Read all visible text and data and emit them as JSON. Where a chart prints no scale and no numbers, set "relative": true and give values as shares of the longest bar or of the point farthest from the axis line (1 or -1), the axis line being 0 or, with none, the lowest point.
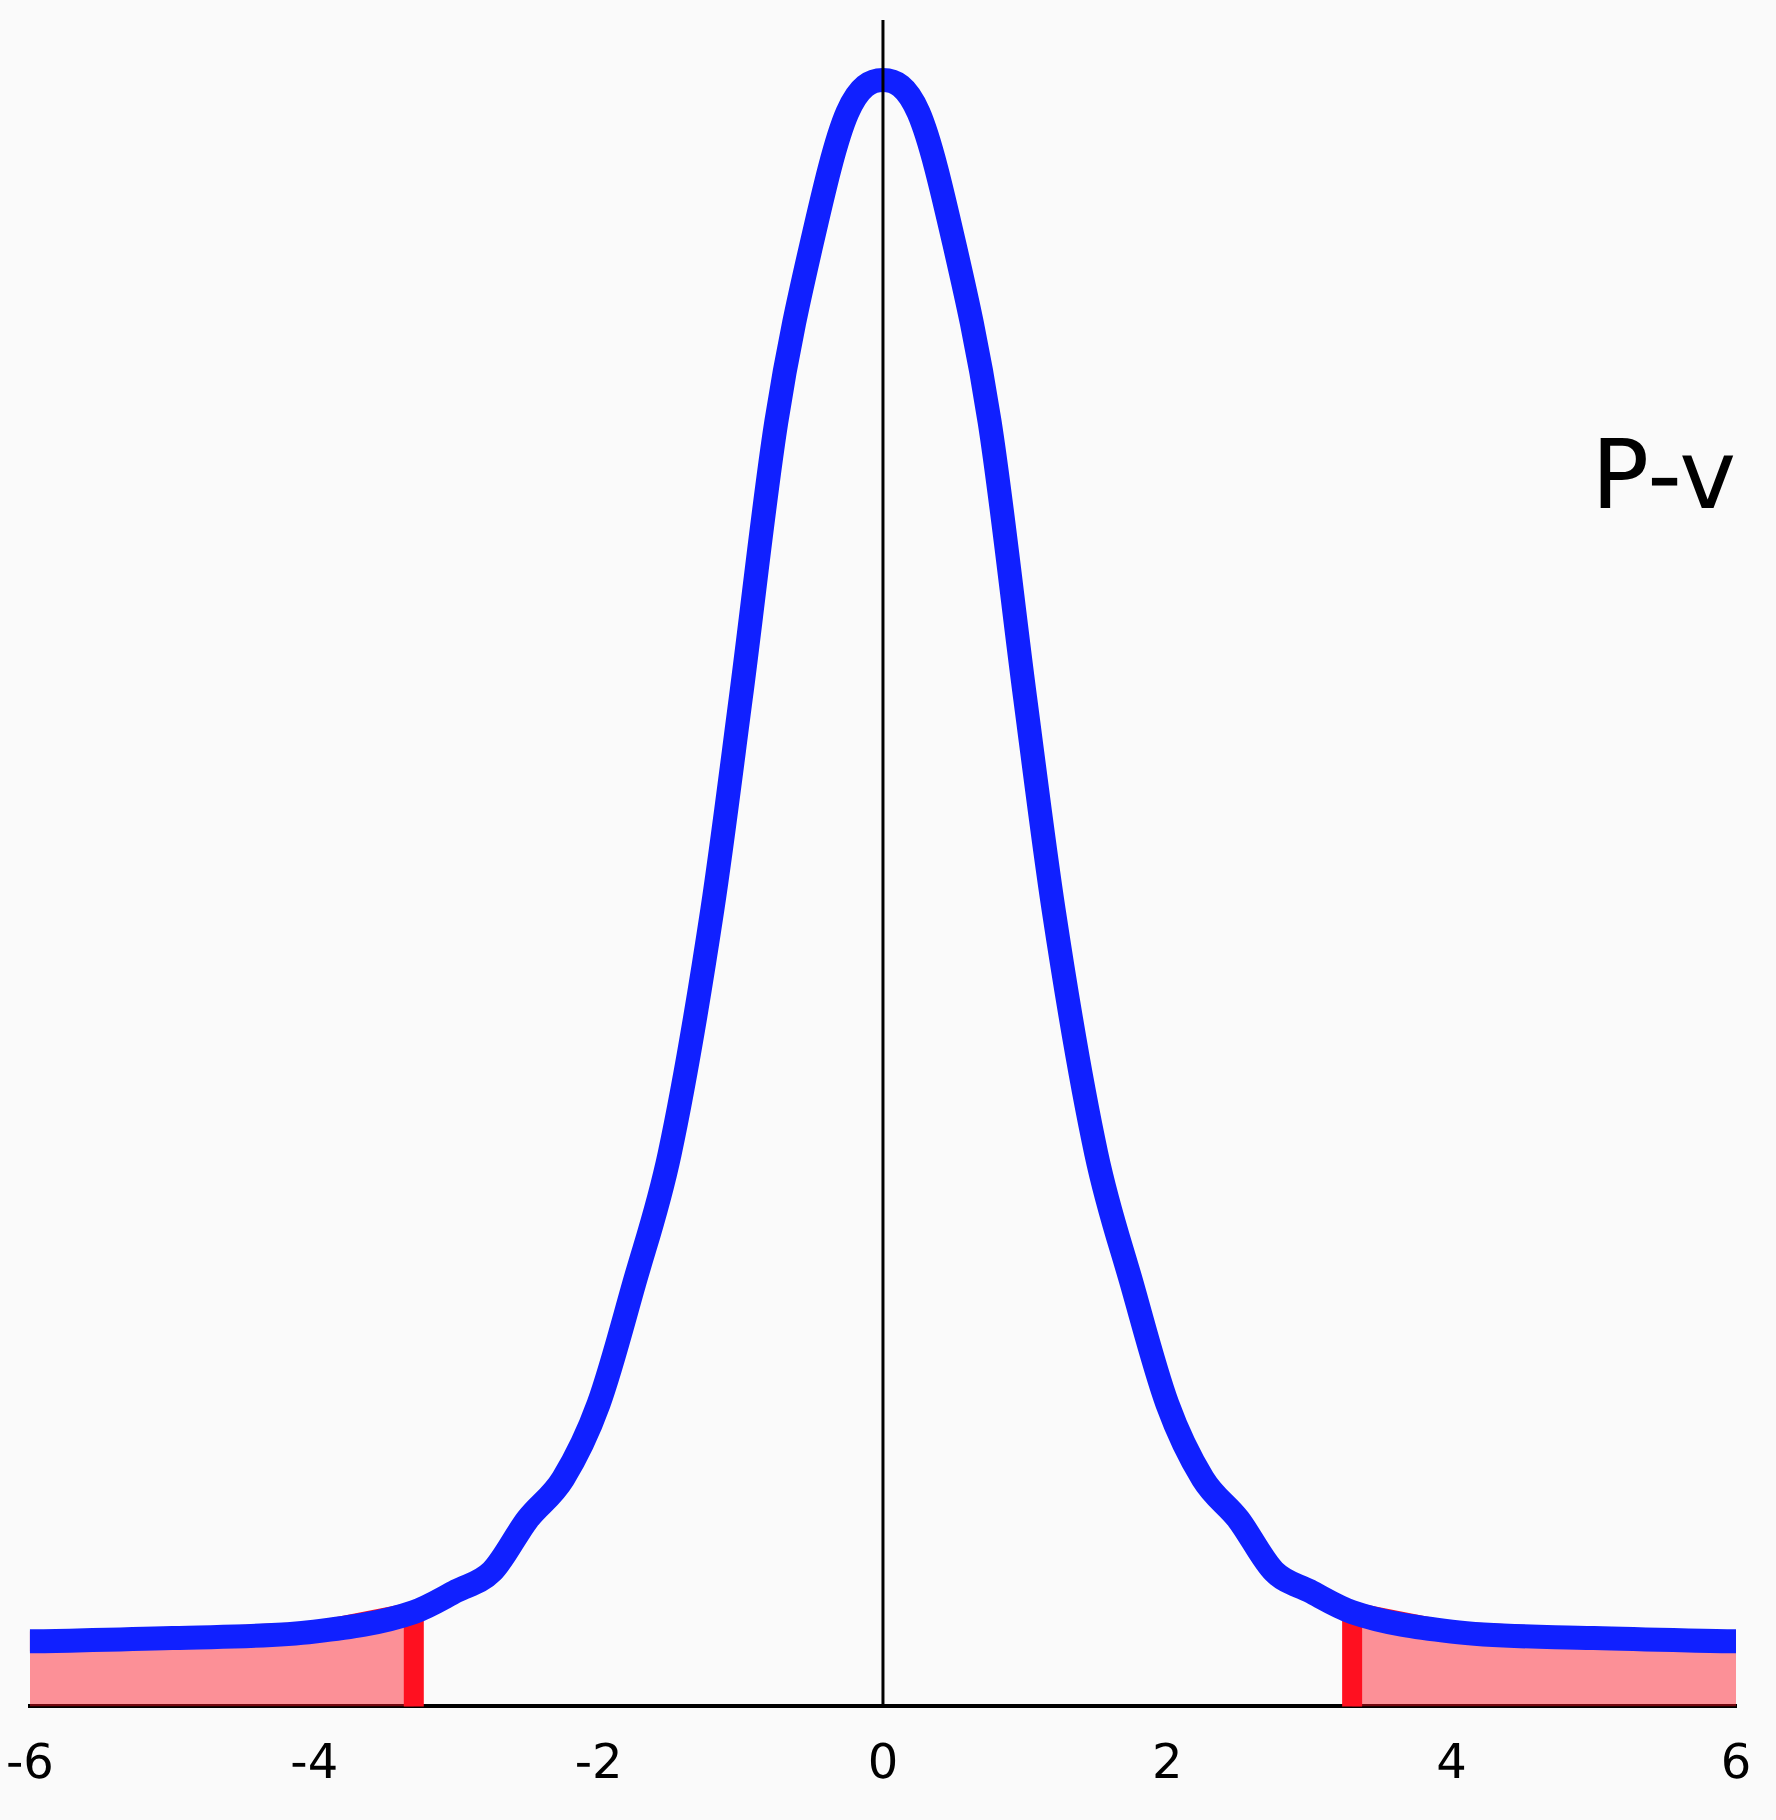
{
  "chart_data": {
    "type": "line",
    "relative": true,
    "xlim": [
      -6,
      6
    ],
    "xticks": [
      -6,
      -4,
      -2,
      0,
      2,
      4,
      6
    ],
    "grid": false,
    "legend": false,
    "marker": "none",
    "annotations": [
      "P-v"
    ],
    "ref_lines": [
      {
        "axis": "x",
        "value": 0,
        "color": "#000000"
      }
    ],
    "series": [
      {
        "color": "#1020ff",
        "x": [
          -6,
          -5,
          -4,
          -3.3,
          -3,
          -2.75,
          -2.5,
          -2.25,
          -2,
          -1.75,
          -1.5,
          -1.2,
          -1,
          -0.75,
          -0.5,
          -0.25,
          0,
          0.25,
          0.5,
          0.75,
          1,
          1.2,
          1.5,
          1.75,
          2,
          2.25,
          2.5,
          2.75,
          3,
          3.3,
          4,
          5,
          6
        ],
        "values": [
          0.04,
          0.042,
          0.046,
          0.058,
          0.071,
          0.083,
          0.115,
          0.14,
          0.186,
          0.26,
          0.34,
          0.49,
          0.62,
          0.79,
          0.9,
          0.98,
          1,
          0.98,
          0.9,
          0.79,
          0.62,
          0.49,
          0.34,
          0.26,
          0.186,
          0.14,
          0.115,
          0.083,
          0.071,
          0.058,
          0.046,
          0.042,
          0.04
        ]
      },
      {
        "type": "area",
        "color": "#ff1020",
        "x": [
          -6,
          -5,
          -4,
          -3.3,
          -3.3
        ],
        "values": [
          0.04,
          0.042,
          0.046,
          0.058,
          0
        ]
      },
      {
        "type": "area",
        "color": "#ff1020",
        "x": [
          3.3,
          3.3,
          4,
          5,
          6
        ],
        "values": [
          0,
          0.058,
          0.046,
          0.042,
          0.04
        ]
      }
    ]
  }
}
